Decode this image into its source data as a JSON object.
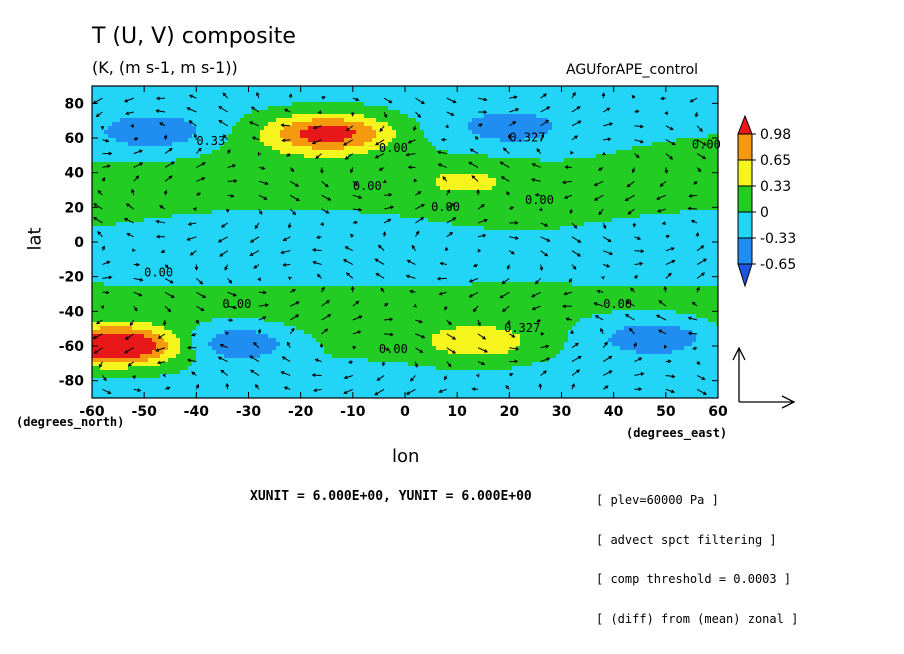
{
  "chart_data": {
    "type": "contour",
    "title": "T (U, V) composite",
    "subtitle": "(K, (m s-1, m s-1))",
    "dataset": "AGUforAPE_control",
    "xlabel": "lon",
    "ylabel": "lat",
    "xunits": "(degrees_east)",
    "yunits": "(degrees_north)",
    "xlim": [
      -60,
      60
    ],
    "ylim": [
      -90,
      90
    ],
    "xticks": [
      -60,
      -50,
      -40,
      -30,
      -20,
      -10,
      0,
      10,
      20,
      30,
      40,
      50,
      60
    ],
    "yticks": [
      80,
      60,
      40,
      20,
      0,
      -20,
      -40,
      -60,
      -80
    ],
    "colorbar": {
      "levels": [
        "0.98",
        "0.65",
        "0.33",
        "0",
        "-0.33",
        "-0.65"
      ],
      "colors": [
        "#e8171a",
        "#f59a0e",
        "#f5f51d",
        "#22cc22",
        "#22d4f5",
        "#1f8ef0",
        "#1d55e0"
      ]
    },
    "contour_labels": [
      "0.33",
      "0.00",
      "0.327",
      "0.00",
      "0.00",
      "0.00",
      "0.00",
      "0.00",
      "0.00",
      "0.00",
      "0.00",
      "0.327"
    ],
    "features": [
      {
        "lon": -58,
        "lat": -60,
        "value": 1.0
      },
      {
        "lon": -52,
        "lat": -60,
        "value": 0.7
      },
      {
        "lon": -18,
        "lat": 63,
        "value": 0.6
      },
      {
        "lon": -12,
        "lat": 63,
        "value": 0.7
      },
      {
        "lon": 14,
        "lat": -58,
        "value": 0.6
      },
      {
        "lon": 12,
        "lat": 35,
        "value": 0.35
      },
      {
        "lon": -48,
        "lat": 63,
        "value": -0.5
      },
      {
        "lon": -32,
        "lat": -58,
        "value": -0.7
      },
      {
        "lon": 48,
        "lat": -55,
        "value": -0.7
      },
      {
        "lon": 20,
        "lat": 66,
        "value": -0.4
      }
    ],
    "vector_units": "XUNIT = 6.000E+00, YUNIT = 6.000E+00"
  },
  "notes": [
    "[ plev=60000 Pa ]",
    "[ advect spct filtering ]",
    "[ comp threshold = 0.0003 ]",
    "[ (diff) from (mean) zonal ]"
  ]
}
